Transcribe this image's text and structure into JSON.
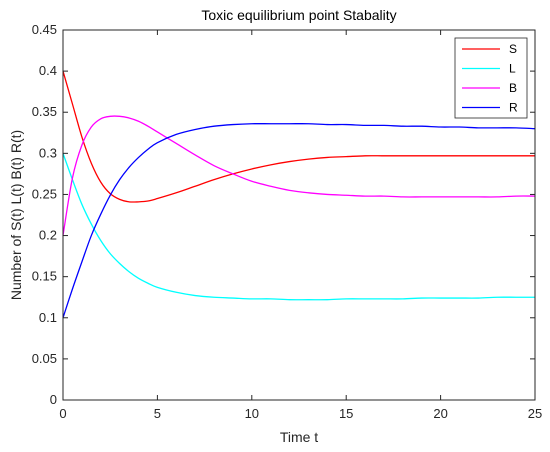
{
  "chart_data": {
    "type": "line",
    "title": "Toxic equilibrium point Stabality",
    "xlabel": "Time t",
    "ylabel": "Number of S(t) L(t) B(t) R(t)",
    "xlim": [
      0,
      25
    ],
    "ylim": [
      0,
      0.45
    ],
    "xticks": [
      0,
      5,
      10,
      15,
      20,
      25
    ],
    "xtick_labels": [
      "0",
      "5",
      "10",
      "15",
      "20",
      "25"
    ],
    "yticks": [
      0,
      0.05,
      0.1,
      0.15,
      0.2,
      0.25,
      0.3,
      0.35,
      0.4,
      0.45
    ],
    "ytick_labels": [
      "0",
      "0.05",
      "0.1",
      "0.15",
      "0.2",
      "0.25",
      "0.3",
      "0.35",
      "0.4",
      "0.45"
    ],
    "grid": false,
    "legend_position": "top-right",
    "x": [
      0,
      0.5,
      1,
      1.5,
      2,
      2.5,
      3,
      3.5,
      4,
      4.5,
      5,
      6,
      7,
      8,
      9,
      10,
      11,
      12,
      13,
      14,
      15,
      16,
      17,
      18,
      19,
      20,
      21,
      22,
      23,
      24,
      25
    ],
    "series": [
      {
        "name": "S",
        "color": "#ff0000",
        "values": [
          0.4,
          0.36,
          0.32,
          0.288,
          0.265,
          0.251,
          0.244,
          0.241,
          0.241,
          0.242,
          0.245,
          0.252,
          0.26,
          0.268,
          0.275,
          0.281,
          0.286,
          0.29,
          0.293,
          0.295,
          0.296,
          0.297,
          0.297,
          0.297,
          0.297,
          0.297,
          0.297,
          0.297,
          0.297,
          0.297,
          0.297
        ]
      },
      {
        "name": "L",
        "color": "#00ffff",
        "values": [
          0.3,
          0.268,
          0.238,
          0.214,
          0.194,
          0.178,
          0.166,
          0.156,
          0.148,
          0.142,
          0.137,
          0.131,
          0.127,
          0.125,
          0.124,
          0.123,
          0.123,
          0.122,
          0.122,
          0.122,
          0.123,
          0.123,
          0.123,
          0.123,
          0.124,
          0.124,
          0.124,
          0.124,
          0.125,
          0.125,
          0.125
        ]
      },
      {
        "name": "B",
        "color": "#ff00ff",
        "values": [
          0.2,
          0.27,
          0.31,
          0.332,
          0.342,
          0.345,
          0.345,
          0.343,
          0.339,
          0.333,
          0.326,
          0.312,
          0.298,
          0.285,
          0.275,
          0.266,
          0.26,
          0.255,
          0.252,
          0.25,
          0.249,
          0.248,
          0.248,
          0.247,
          0.247,
          0.247,
          0.247,
          0.247,
          0.247,
          0.248,
          0.248
        ]
      },
      {
        "name": "R",
        "color": "#0000ff",
        "values": [
          0.1,
          0.135,
          0.168,
          0.2,
          0.226,
          0.249,
          0.268,
          0.283,
          0.295,
          0.305,
          0.313,
          0.323,
          0.329,
          0.333,
          0.335,
          0.336,
          0.336,
          0.336,
          0.336,
          0.335,
          0.335,
          0.334,
          0.334,
          0.333,
          0.333,
          0.332,
          0.332,
          0.331,
          0.331,
          0.331,
          0.33
        ]
      }
    ]
  }
}
